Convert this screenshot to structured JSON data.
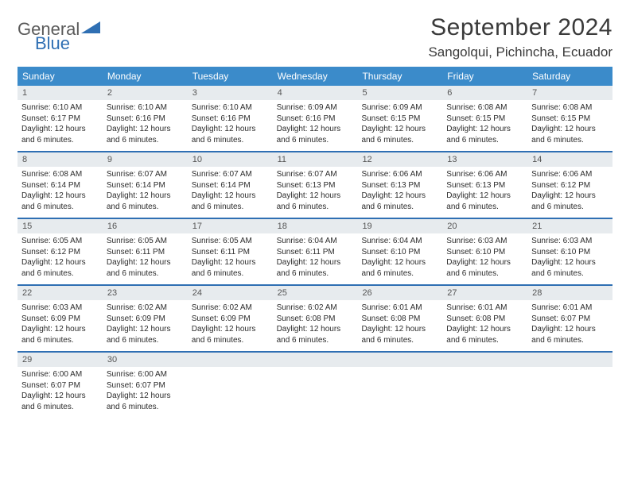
{
  "logo": {
    "part1": "General",
    "part2": "Blue"
  },
  "title": "September 2024",
  "location": "Sangolqui, Pichincha, Ecuador",
  "colors": {
    "header_bg": "#3b8bca",
    "row_divider": "#2f6fb3",
    "daynum_bg": "#e7ebee",
    "text": "#2b2b2b",
    "logo_gray": "#5a5a5a",
    "logo_blue": "#2f6fb3"
  },
  "weekdays": [
    "Sunday",
    "Monday",
    "Tuesday",
    "Wednesday",
    "Thursday",
    "Friday",
    "Saturday"
  ],
  "weeks": [
    [
      {
        "n": "1",
        "sunrise": "6:10 AM",
        "sunset": "6:17 PM",
        "daylight": "12 hours and 6 minutes."
      },
      {
        "n": "2",
        "sunrise": "6:10 AM",
        "sunset": "6:16 PM",
        "daylight": "12 hours and 6 minutes."
      },
      {
        "n": "3",
        "sunrise": "6:10 AM",
        "sunset": "6:16 PM",
        "daylight": "12 hours and 6 minutes."
      },
      {
        "n": "4",
        "sunrise": "6:09 AM",
        "sunset": "6:16 PM",
        "daylight": "12 hours and 6 minutes."
      },
      {
        "n": "5",
        "sunrise": "6:09 AM",
        "sunset": "6:15 PM",
        "daylight": "12 hours and 6 minutes."
      },
      {
        "n": "6",
        "sunrise": "6:08 AM",
        "sunset": "6:15 PM",
        "daylight": "12 hours and 6 minutes."
      },
      {
        "n": "7",
        "sunrise": "6:08 AM",
        "sunset": "6:15 PM",
        "daylight": "12 hours and 6 minutes."
      }
    ],
    [
      {
        "n": "8",
        "sunrise": "6:08 AM",
        "sunset": "6:14 PM",
        "daylight": "12 hours and 6 minutes."
      },
      {
        "n": "9",
        "sunrise": "6:07 AM",
        "sunset": "6:14 PM",
        "daylight": "12 hours and 6 minutes."
      },
      {
        "n": "10",
        "sunrise": "6:07 AM",
        "sunset": "6:14 PM",
        "daylight": "12 hours and 6 minutes."
      },
      {
        "n": "11",
        "sunrise": "6:07 AM",
        "sunset": "6:13 PM",
        "daylight": "12 hours and 6 minutes."
      },
      {
        "n": "12",
        "sunrise": "6:06 AM",
        "sunset": "6:13 PM",
        "daylight": "12 hours and 6 minutes."
      },
      {
        "n": "13",
        "sunrise": "6:06 AM",
        "sunset": "6:13 PM",
        "daylight": "12 hours and 6 minutes."
      },
      {
        "n": "14",
        "sunrise": "6:06 AM",
        "sunset": "6:12 PM",
        "daylight": "12 hours and 6 minutes."
      }
    ],
    [
      {
        "n": "15",
        "sunrise": "6:05 AM",
        "sunset": "6:12 PM",
        "daylight": "12 hours and 6 minutes."
      },
      {
        "n": "16",
        "sunrise": "6:05 AM",
        "sunset": "6:11 PM",
        "daylight": "12 hours and 6 minutes."
      },
      {
        "n": "17",
        "sunrise": "6:05 AM",
        "sunset": "6:11 PM",
        "daylight": "12 hours and 6 minutes."
      },
      {
        "n": "18",
        "sunrise": "6:04 AM",
        "sunset": "6:11 PM",
        "daylight": "12 hours and 6 minutes."
      },
      {
        "n": "19",
        "sunrise": "6:04 AM",
        "sunset": "6:10 PM",
        "daylight": "12 hours and 6 minutes."
      },
      {
        "n": "20",
        "sunrise": "6:03 AM",
        "sunset": "6:10 PM",
        "daylight": "12 hours and 6 minutes."
      },
      {
        "n": "21",
        "sunrise": "6:03 AM",
        "sunset": "6:10 PM",
        "daylight": "12 hours and 6 minutes."
      }
    ],
    [
      {
        "n": "22",
        "sunrise": "6:03 AM",
        "sunset": "6:09 PM",
        "daylight": "12 hours and 6 minutes."
      },
      {
        "n": "23",
        "sunrise": "6:02 AM",
        "sunset": "6:09 PM",
        "daylight": "12 hours and 6 minutes."
      },
      {
        "n": "24",
        "sunrise": "6:02 AM",
        "sunset": "6:09 PM",
        "daylight": "12 hours and 6 minutes."
      },
      {
        "n": "25",
        "sunrise": "6:02 AM",
        "sunset": "6:08 PM",
        "daylight": "12 hours and 6 minutes."
      },
      {
        "n": "26",
        "sunrise": "6:01 AM",
        "sunset": "6:08 PM",
        "daylight": "12 hours and 6 minutes."
      },
      {
        "n": "27",
        "sunrise": "6:01 AM",
        "sunset": "6:08 PM",
        "daylight": "12 hours and 6 minutes."
      },
      {
        "n": "28",
        "sunrise": "6:01 AM",
        "sunset": "6:07 PM",
        "daylight": "12 hours and 6 minutes."
      }
    ],
    [
      {
        "n": "29",
        "sunrise": "6:00 AM",
        "sunset": "6:07 PM",
        "daylight": "12 hours and 6 minutes."
      },
      {
        "n": "30",
        "sunrise": "6:00 AM",
        "sunset": "6:07 PM",
        "daylight": "12 hours and 6 minutes."
      },
      null,
      null,
      null,
      null,
      null
    ]
  ],
  "labels": {
    "sunrise": "Sunrise:",
    "sunset": "Sunset:",
    "daylight": "Daylight:"
  }
}
